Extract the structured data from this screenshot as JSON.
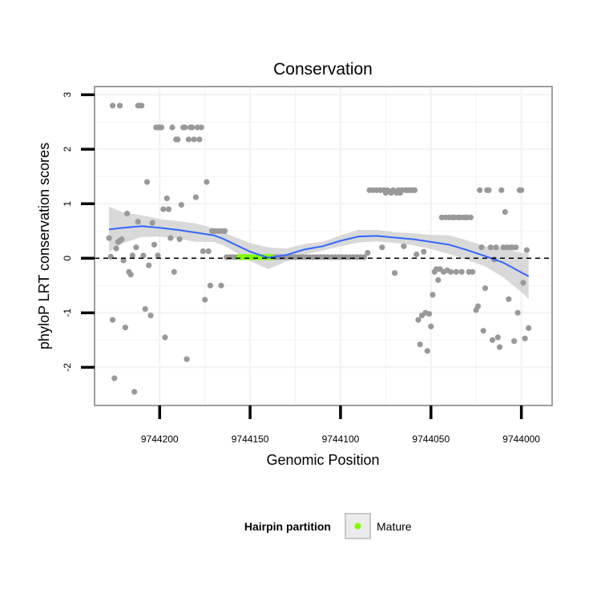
{
  "chart_data": {
    "type": "scatter",
    "title": "Conservation",
    "xlabel": "Genomic Position",
    "ylabel": "phyloP LRT conservation scores",
    "xlim": [
      9744236,
      9743983
    ],
    "x_reversed": true,
    "ylim": [
      -2.7,
      3.15
    ],
    "x_ticks": [
      9744200,
      9744150,
      9744100,
      9744050,
      9744000
    ],
    "x_tick_labels": [
      "9744200",
      "9744150",
      "9744100",
      "9744050",
      "9744000"
    ],
    "y_ticks": [
      -2,
      -1,
      0,
      1,
      2,
      3
    ],
    "y_tick_labels": [
      "-2",
      "-1",
      "0",
      "1",
      "2",
      "3"
    ],
    "reference_line": {
      "y": 0,
      "style": "dashed"
    },
    "grid": true,
    "colors": {
      "points": "#999999",
      "mature": "#7fff00",
      "smooth": "#3366ff",
      "ribbon": "#cccccc",
      "panel_border": "#7f7f7f",
      "grid": "#f2f2f2"
    },
    "series": [
      {
        "name": "scores",
        "points": [
          [
            9744228,
            0.37
          ],
          [
            9744227,
            0.03
          ],
          [
            9744226,
            -1.13
          ],
          [
            9744225,
            -2.2
          ],
          [
            9744226,
            2.8
          ],
          [
            9744222,
            2.8
          ],
          [
            9744223,
            0.3
          ],
          [
            9744222,
            0.32
          ],
          [
            9744221,
            0.35
          ],
          [
            9744224,
            0.18
          ],
          [
            9744220,
            -0.04
          ],
          [
            9744219,
            -1.27
          ],
          [
            9744218,
            0.82
          ],
          [
            9744217,
            -0.25
          ],
          [
            9744216,
            -0.3
          ],
          [
            9744215,
            0.05
          ],
          [
            9744214,
            -2.45
          ],
          [
            9744213,
            0.2
          ],
          [
            9744212,
            2.8
          ],
          [
            9744211,
            2.8
          ],
          [
            9744210,
            2.8
          ],
          [
            9744212,
            0.67
          ],
          [
            9744209,
            0.05
          ],
          [
            9744208,
            -0.93
          ],
          [
            9744207,
            1.4
          ],
          [
            9744206,
            -0.13
          ],
          [
            9744205,
            -1.05
          ],
          [
            9744204,
            0.65
          ],
          [
            9744203,
            0.25
          ],
          [
            9744202,
            2.4
          ],
          [
            9744201,
            2.4
          ],
          [
            9744200,
            2.4
          ],
          [
            9744199,
            2.4
          ],
          [
            9744201,
            0.05
          ],
          [
            9744198,
            0.9
          ],
          [
            9744197,
            -1.45
          ],
          [
            9744196,
            1.1
          ],
          [
            9744195,
            0.9
          ],
          [
            9744194,
            0.37
          ],
          [
            9744193,
            2.4
          ],
          [
            9744192,
            -0.25
          ],
          [
            9744191,
            2.18
          ],
          [
            9744190,
            2.18
          ],
          [
            9744189,
            0.35
          ],
          [
            9744188,
            0.98
          ],
          [
            9744187,
            2.4
          ],
          [
            9744186,
            2.4
          ],
          [
            9744185,
            -1.85
          ],
          [
            9744184,
            2.18
          ],
          [
            9744183,
            2.4
          ],
          [
            9744182,
            2.4
          ],
          [
            9744181,
            2.18
          ],
          [
            9744180,
            1.12
          ],
          [
            9744179,
            2.4
          ],
          [
            9744178,
            2.18
          ],
          [
            9744177,
            2.4
          ],
          [
            9744176,
            0.13
          ],
          [
            9744175,
            -0.76
          ],
          [
            9744174,
            1.4
          ],
          [
            9744173,
            0.13
          ],
          [
            9744172,
            -0.5
          ],
          [
            9744171,
            0.5
          ],
          [
            9744170,
            0.5
          ],
          [
            9744169,
            0.5
          ],
          [
            9744167,
            0.5
          ],
          [
            9744166,
            -0.5
          ],
          [
            9744165,
            0.5
          ],
          [
            9744164,
            0.5
          ],
          [
            9744163,
            0.02
          ],
          [
            9744161,
            0.02
          ],
          [
            9744159,
            0.02
          ],
          [
            9744157,
            0.02
          ],
          [
            9744155,
            0.02
          ],
          [
            9744153,
            0.02
          ],
          [
            9744151,
            0.02
          ],
          [
            9744149,
            0.02
          ],
          [
            9744147,
            0.02
          ],
          [
            9744145,
            0.02
          ],
          [
            9744143,
            0.02
          ],
          [
            9744141,
            0.02
          ],
          [
            9744139,
            0.02
          ],
          [
            9744137,
            0.02
          ],
          [
            9744135,
            0.02
          ],
          [
            9744133,
            0.02
          ],
          [
            9744131,
            0.02
          ],
          [
            9744129,
            0.02
          ],
          [
            9744127,
            0.02
          ],
          [
            9744125,
            0.02
          ],
          [
            9744123,
            0.02
          ],
          [
            9744121,
            0.02
          ],
          [
            9744119,
            0.02
          ],
          [
            9744117,
            0.02
          ],
          [
            9744115,
            0.02
          ],
          [
            9744113,
            0.02
          ],
          [
            9744111,
            0.02
          ],
          [
            9744109,
            0.02
          ],
          [
            9744107,
            0.02
          ],
          [
            9744105,
            0.02
          ],
          [
            9744103,
            0.02
          ],
          [
            9744101,
            0.02
          ],
          [
            9744099,
            0.02
          ],
          [
            9744097,
            0.02
          ],
          [
            9744095,
            0.02
          ],
          [
            9744093,
            0.02
          ],
          [
            9744091,
            0.02
          ],
          [
            9744089,
            0.02
          ],
          [
            9744087,
            0.02
          ],
          [
            9744085,
            0.1
          ],
          [
            9744084,
            1.25
          ],
          [
            9744082,
            1.25
          ],
          [
            9744080,
            1.25
          ],
          [
            9744078,
            1.25
          ],
          [
            9744077,
            0.2
          ],
          [
            9744076,
            1.25
          ],
          [
            9744075,
            1.2
          ],
          [
            9744074,
            1.25
          ],
          [
            9744072,
            1.2
          ],
          [
            9744071,
            1.25
          ],
          [
            9744070,
            -0.27
          ],
          [
            9744069,
            1.2
          ],
          [
            9744068,
            1.25
          ],
          [
            9744067,
            1.2
          ],
          [
            9744066,
            1.25
          ],
          [
            9744065,
            0.22
          ],
          [
            9744064,
            1.25
          ],
          [
            9744063,
            1.25
          ],
          [
            9744062,
            1.25
          ],
          [
            9744061,
            1.25
          ],
          [
            9744060,
            1.25
          ],
          [
            9744059,
            1.25
          ],
          [
            9744058,
            0.07
          ],
          [
            9744057,
            -1.13
          ],
          [
            9744056,
            -1.58
          ],
          [
            9744055,
            -1.05
          ],
          [
            9744054,
            0.12
          ],
          [
            9744053,
            -1.0
          ],
          [
            9744052,
            -1.7
          ],
          [
            9744051,
            -1.02
          ],
          [
            9744050,
            -1.25
          ],
          [
            9744049,
            -0.67
          ],
          [
            9744048,
            -0.25
          ],
          [
            9744047,
            -0.2
          ],
          [
            9744046,
            -0.4
          ],
          [
            9744045,
            -0.2
          ],
          [
            9744044,
            0.75
          ],
          [
            9744043,
            -0.25
          ],
          [
            9744042,
            0.75
          ],
          [
            9744041,
            -0.22
          ],
          [
            9744040,
            0.75
          ],
          [
            9744039,
            -0.25
          ],
          [
            9744038,
            0.75
          ],
          [
            9744037,
            0.75
          ],
          [
            9744036,
            -0.25
          ],
          [
            9744035,
            0.75
          ],
          [
            9744034,
            0.75
          ],
          [
            9744033,
            -0.25
          ],
          [
            9744032,
            0.75
          ],
          [
            9744031,
            0.75
          ],
          [
            9744030,
            0.75
          ],
          [
            9744029,
            -0.25
          ],
          [
            9744028,
            0.75
          ],
          [
            9744027,
            -0.25
          ],
          [
            9744025,
            -0.95
          ],
          [
            9744024,
            -0.88
          ],
          [
            9744023,
            1.25
          ],
          [
            9744022,
            0.2
          ],
          [
            9744021,
            -1.33
          ],
          [
            9744020,
            -0.55
          ],
          [
            9744019,
            1.25
          ],
          [
            9744018,
            1.25
          ],
          [
            9744017,
            0.2
          ],
          [
            9744016,
            -1.5
          ],
          [
            9744015,
            -0.02
          ],
          [
            9744014,
            0.2
          ],
          [
            9744013,
            -1.45
          ],
          [
            9744012,
            -1.63
          ],
          [
            9744011,
            1.25
          ],
          [
            9744010,
            0.2
          ],
          [
            9744009,
            0.85
          ],
          [
            9744008,
            0.2
          ],
          [
            9744007,
            -0.75
          ],
          [
            9744006,
            0.2
          ],
          [
            9744005,
            0.2
          ],
          [
            9744004,
            -1.52
          ],
          [
            9744003,
            0.2
          ],
          [
            9744002,
            -1.0
          ],
          [
            9744001,
            1.25
          ],
          [
            9744000,
            1.25
          ],
          [
            9743999,
            -0.45
          ],
          [
            9743998,
            -1.47
          ],
          [
            9743997,
            0.15
          ],
          [
            9743996,
            -1.28
          ]
        ]
      },
      {
        "name": "Mature",
        "points": [
          [
            9744156,
            0.02
          ],
          [
            9744155,
            0.02
          ],
          [
            9744154,
            0.02
          ],
          [
            9744153,
            0.02
          ],
          [
            9744152,
            0.02
          ],
          [
            9744151,
            0.02
          ],
          [
            9744150,
            0.02
          ],
          [
            9744149,
            0.02
          ],
          [
            9744148,
            0.02
          ],
          [
            9744147,
            0.02
          ],
          [
            9744146,
            0.02
          ],
          [
            9744145,
            0.02
          ],
          [
            9744144,
            0.02
          ],
          [
            9744143,
            0.02
          ],
          [
            9744142,
            0.02
          ],
          [
            9744141,
            0.02
          ],
          [
            9744140,
            0.02
          ],
          [
            9744139,
            0.02
          ],
          [
            9744138,
            0.02
          ]
        ]
      }
    ],
    "smooth": {
      "x": [
        9744228,
        9744220,
        9744210,
        9744200,
        9744190,
        9744180,
        9744170,
        9744165,
        9744160,
        9744150,
        9744140,
        9744130,
        9744120,
        9744110,
        9744100,
        9744090,
        9744080,
        9744070,
        9744060,
        9744050,
        9744040,
        9744030,
        9744020,
        9744010,
        9744000,
        9743996
      ],
      "y": [
        0.53,
        0.56,
        0.59,
        0.56,
        0.52,
        0.47,
        0.42,
        0.36,
        0.28,
        0.12,
        0.01,
        0.06,
        0.16,
        0.22,
        0.32,
        0.4,
        0.41,
        0.38,
        0.35,
        0.3,
        0.25,
        0.15,
        0.04,
        -0.08,
        -0.26,
        -0.33
      ],
      "lower": [
        0.12,
        0.28,
        0.39,
        0.4,
        0.36,
        0.3,
        0.3,
        0.24,
        0.15,
        -0.05,
        -0.2,
        -0.06,
        0.07,
        0.14,
        0.22,
        0.29,
        0.31,
        0.28,
        0.24,
        0.17,
        0.08,
        -0.03,
        -0.15,
        -0.35,
        -0.62,
        -0.75
      ],
      "upper": [
        0.95,
        0.84,
        0.79,
        0.72,
        0.68,
        0.64,
        0.55,
        0.48,
        0.41,
        0.28,
        0.2,
        0.18,
        0.26,
        0.3,
        0.42,
        0.52,
        0.52,
        0.48,
        0.46,
        0.43,
        0.42,
        0.33,
        0.22,
        0.19,
        0.1,
        0.09
      ]
    },
    "legend": {
      "position": "bottom",
      "title": "Hairpin partition",
      "entries": [
        "Mature"
      ]
    }
  }
}
